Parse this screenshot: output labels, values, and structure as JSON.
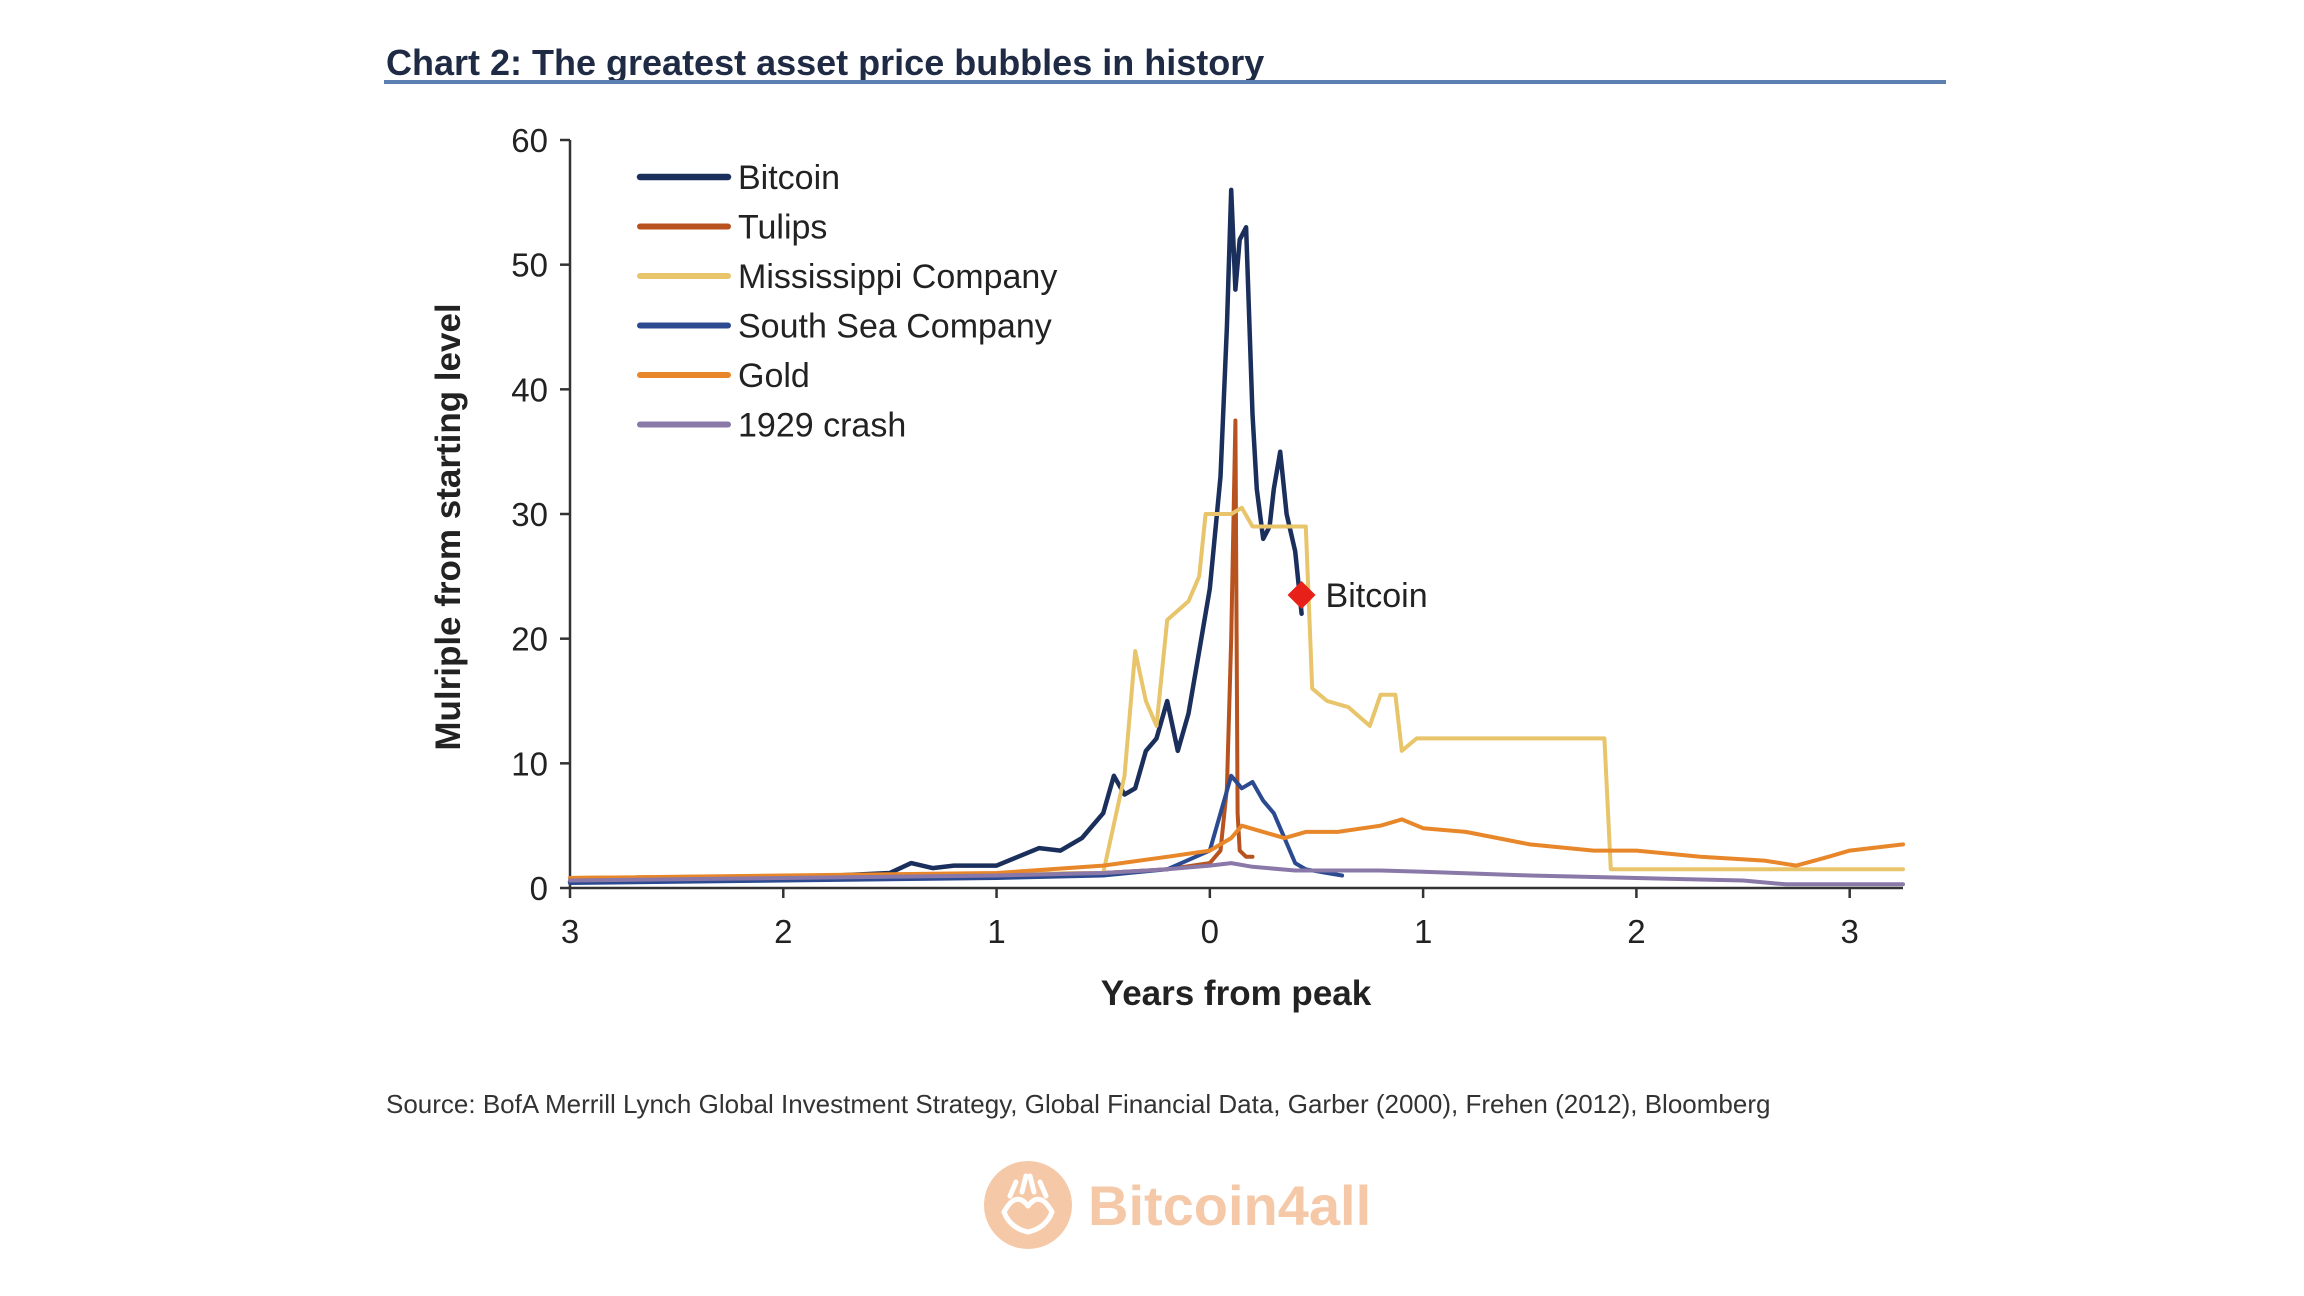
{
  "chart_data": {
    "type": "line",
    "title": "Chart 2: The greatest asset price bubbles in history",
    "xlabel": "Years from peak",
    "ylabel": "Mulriple from starting level",
    "xlim": [
      -3,
      3.25
    ],
    "ylim": [
      0,
      60
    ],
    "x_ticks": [
      {
        "value": -3,
        "label": "3"
      },
      {
        "value": -2,
        "label": "2"
      },
      {
        "value": -1,
        "label": "1"
      },
      {
        "value": 0,
        "label": "0"
      },
      {
        "value": 1,
        "label": "1"
      },
      {
        "value": 2,
        "label": "2"
      },
      {
        "value": 3,
        "label": "3"
      }
    ],
    "y_ticks": [
      0,
      10,
      20,
      30,
      40,
      50,
      60
    ],
    "y_tick_labels": [
      "0",
      "10",
      "20",
      "30",
      "40",
      "50",
      "60"
    ],
    "grid": false,
    "legend": "top-left",
    "series": [
      {
        "name": "Bitcoin",
        "color": "#1b2f5c",
        "width": 4.5,
        "points": [
          [
            -3,
            0.5
          ],
          [
            -2,
            0.8
          ],
          [
            -1.5,
            1.2
          ],
          [
            -1.4,
            2
          ],
          [
            -1.3,
            1.6
          ],
          [
            -1.2,
            1.8
          ],
          [
            -1,
            1.8
          ],
          [
            -0.9,
            2.5
          ],
          [
            -0.8,
            3.2
          ],
          [
            -0.7,
            3
          ],
          [
            -0.6,
            4
          ],
          [
            -0.5,
            6
          ],
          [
            -0.45,
            9
          ],
          [
            -0.4,
            7.5
          ],
          [
            -0.35,
            8
          ],
          [
            -0.3,
            11
          ],
          [
            -0.25,
            12
          ],
          [
            -0.2,
            15
          ],
          [
            -0.15,
            11
          ],
          [
            -0.1,
            14
          ],
          [
            -0.05,
            19
          ],
          [
            0,
            24
          ],
          [
            0.05,
            33
          ],
          [
            0.08,
            45
          ],
          [
            0.1,
            56
          ],
          [
            0.12,
            48
          ],
          [
            0.14,
            52
          ],
          [
            0.17,
            53
          ],
          [
            0.2,
            38
          ],
          [
            0.22,
            32
          ],
          [
            0.25,
            28
          ],
          [
            0.28,
            29
          ],
          [
            0.3,
            32
          ],
          [
            0.33,
            35
          ],
          [
            0.36,
            30
          ],
          [
            0.4,
            27
          ],
          [
            0.43,
            22
          ]
        ]
      },
      {
        "name": "Tulips",
        "color": "#b8521e",
        "width": 4,
        "points": [
          [
            -3,
            0.8
          ],
          [
            -0.5,
            1.2
          ],
          [
            -0.2,
            1.5
          ],
          [
            0,
            2
          ],
          [
            0.05,
            3
          ],
          [
            0.08,
            8
          ],
          [
            0.1,
            20
          ],
          [
            0.12,
            37.5
          ],
          [
            0.13,
            6
          ],
          [
            0.14,
            3
          ],
          [
            0.17,
            2.5
          ],
          [
            0.2,
            2.5
          ]
        ]
      },
      {
        "name": "Mississippi Company",
        "color": "#e8c46a",
        "width": 4,
        "points": [
          [
            -3,
            0.8
          ],
          [
            -0.5,
            1.2
          ],
          [
            -0.4,
            9
          ],
          [
            -0.35,
            19
          ],
          [
            -0.3,
            15
          ],
          [
            -0.25,
            13
          ],
          [
            -0.2,
            21.5
          ],
          [
            -0.1,
            23
          ],
          [
            -0.05,
            25
          ],
          [
            -0.02,
            30
          ],
          [
            0.1,
            30
          ],
          [
            0.15,
            30.5
          ],
          [
            0.2,
            29
          ],
          [
            0.3,
            29
          ],
          [
            0.45,
            29
          ],
          [
            0.48,
            16
          ],
          [
            0.55,
            15
          ],
          [
            0.65,
            14.5
          ],
          [
            0.75,
            13
          ],
          [
            0.8,
            15.5
          ],
          [
            0.87,
            15.5
          ],
          [
            0.9,
            11
          ],
          [
            0.97,
            12
          ],
          [
            1.2,
            12
          ],
          [
            1.6,
            12
          ],
          [
            1.85,
            12
          ],
          [
            1.88,
            1.5
          ],
          [
            2.4,
            1.5
          ],
          [
            2.8,
            1.5
          ],
          [
            3.25,
            1.5
          ]
        ]
      },
      {
        "name": "South Sea Company",
        "color": "#2b4a90",
        "width": 4,
        "points": [
          [
            -3,
            0.4
          ],
          [
            -2,
            0.6
          ],
          [
            -1,
            0.8
          ],
          [
            -0.5,
            1
          ],
          [
            -0.2,
            1.5
          ],
          [
            0,
            3
          ],
          [
            0.05,
            6
          ],
          [
            0.1,
            9
          ],
          [
            0.15,
            8
          ],
          [
            0.2,
            8.5
          ],
          [
            0.25,
            7
          ],
          [
            0.3,
            6
          ],
          [
            0.35,
            4
          ],
          [
            0.4,
            2
          ],
          [
            0.45,
            1.5
          ],
          [
            0.55,
            1.2
          ],
          [
            0.62,
            1
          ]
        ]
      },
      {
        "name": "Gold",
        "color": "#e8862a",
        "width": 4,
        "points": [
          [
            -3,
            0.8
          ],
          [
            -1,
            1.2
          ],
          [
            -0.5,
            1.8
          ],
          [
            -0.2,
            2.5
          ],
          [
            0,
            3
          ],
          [
            0.1,
            4
          ],
          [
            0.15,
            5
          ],
          [
            0.25,
            4.5
          ],
          [
            0.35,
            4
          ],
          [
            0.45,
            4.5
          ],
          [
            0.6,
            4.5
          ],
          [
            0.8,
            5
          ],
          [
            0.9,
            5.5
          ],
          [
            1,
            4.8
          ],
          [
            1.2,
            4.5
          ],
          [
            1.5,
            3.5
          ],
          [
            1.8,
            3
          ],
          [
            2,
            3
          ],
          [
            2.3,
            2.5
          ],
          [
            2.6,
            2.2
          ],
          [
            2.75,
            1.8
          ],
          [
            2.9,
            2.5
          ],
          [
            3,
            3
          ],
          [
            3.25,
            3.5
          ]
        ]
      },
      {
        "name": "1929 crash",
        "color": "#8a78a8",
        "width": 4,
        "points": [
          [
            -3,
            0.6
          ],
          [
            -2,
            0.8
          ],
          [
            -1,
            1
          ],
          [
            -0.5,
            1.2
          ],
          [
            -0.2,
            1.5
          ],
          [
            0,
            1.8
          ],
          [
            0.1,
            2
          ],
          [
            0.2,
            1.7
          ],
          [
            0.4,
            1.4
          ],
          [
            0.8,
            1.4
          ],
          [
            1,
            1.3
          ],
          [
            1.5,
            1
          ],
          [
            2,
            0.8
          ],
          [
            2.5,
            0.6
          ],
          [
            2.7,
            0.3
          ],
          [
            3.25,
            0.3
          ]
        ]
      }
    ],
    "marker": {
      "label": "Bitcoin",
      "x": 0.43,
      "y": 23.5,
      "color": "#e8201a"
    }
  },
  "source": "Source:  BofA Merrill Lynch Global Investment Strategy, Global Financial Data, Garber (2000), Frehen (2012),  Bloomberg",
  "watermark": {
    "text": "Bitcoin4all",
    "icon": "hands-icon",
    "color": "#f5c9a8"
  }
}
